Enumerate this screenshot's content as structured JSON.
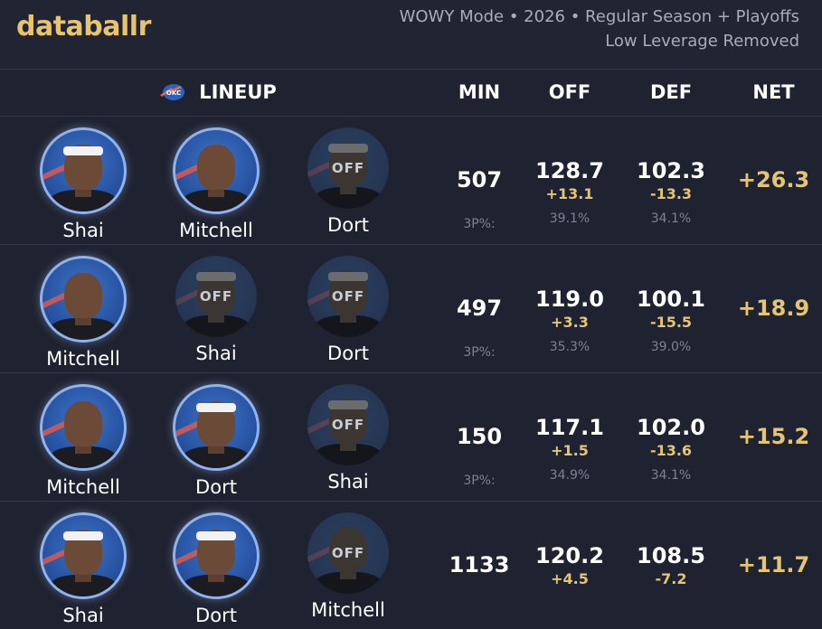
{
  "brand": {
    "logo_text": "databallr"
  },
  "meta": {
    "line1": "WOWY Mode • 2026 • Regular Season + Playoffs",
    "line2": "Low Leverage Removed"
  },
  "columns": {
    "lineup": "LINEUP",
    "min": "MIN",
    "off": "OFF",
    "def": "DEF",
    "net": "NET"
  },
  "team_logo": "okc-thunder-logo",
  "colors": {
    "accent": "#e3c577",
    "background": "#1f2230",
    "avatar_ring": "#8fb3ee"
  },
  "off_text": "OFF",
  "threep_label": "3P%:",
  "rows": [
    {
      "players": [
        {
          "name": "Shai",
          "status": "on"
        },
        {
          "name": "Mitchell",
          "status": "on"
        },
        {
          "name": "Dort",
          "status": "off"
        }
      ],
      "min": "507",
      "off": "128.7",
      "off_delta": "+13.1",
      "off_3p": "39.1%",
      "def": "102.3",
      "def_delta": "-13.3",
      "def_3p": "34.1%",
      "net": "+26.3"
    },
    {
      "players": [
        {
          "name": "Mitchell",
          "status": "on"
        },
        {
          "name": "Shai",
          "status": "off"
        },
        {
          "name": "Dort",
          "status": "off"
        }
      ],
      "min": "497",
      "off": "119.0",
      "off_delta": "+3.3",
      "off_3p": "35.3%",
      "def": "100.1",
      "def_delta": "-15.5",
      "def_3p": "39.0%",
      "net": "+18.9"
    },
    {
      "players": [
        {
          "name": "Mitchell",
          "status": "on"
        },
        {
          "name": "Dort",
          "status": "on"
        },
        {
          "name": "Shai",
          "status": "off"
        }
      ],
      "min": "150",
      "off": "117.1",
      "off_delta": "+1.5",
      "off_3p": "34.9%",
      "def": "102.0",
      "def_delta": "-13.6",
      "def_3p": "34.1%",
      "net": "+15.2"
    },
    {
      "players": [
        {
          "name": "Shai",
          "status": "on"
        },
        {
          "name": "Dort",
          "status": "on"
        },
        {
          "name": "Mitchell",
          "status": "off"
        }
      ],
      "min": "1133",
      "off": "120.2",
      "off_delta": "+4.5",
      "def": "108.5",
      "def_delta": "-7.2",
      "net": "+11.7"
    }
  ]
}
